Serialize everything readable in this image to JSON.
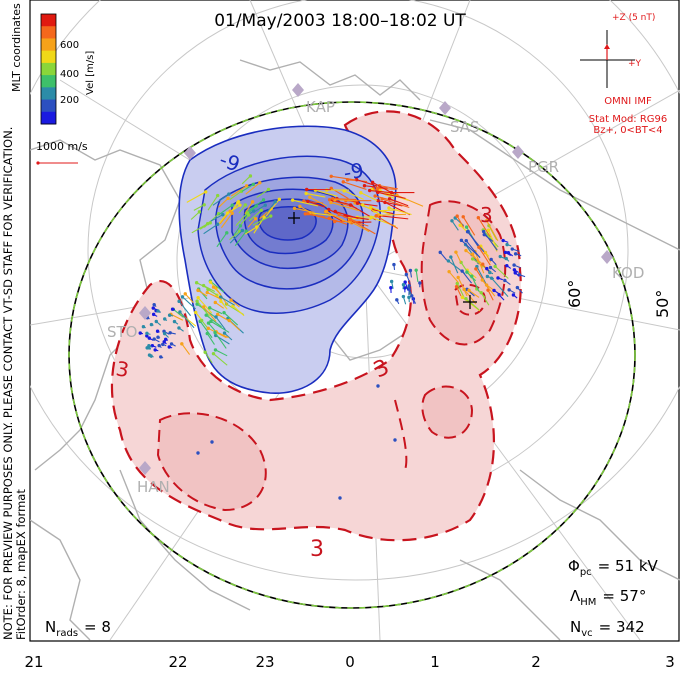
{
  "title": "01/May/2003 18:00–18:02 UT",
  "colorbar": {
    "label": "Vel [m/s]",
    "ticks": [
      "600",
      "400",
      "200"
    ],
    "colors": [
      "#e01a10",
      "#f4681c",
      "#f6a21a",
      "#f0d818",
      "#8ad63a",
      "#3ec06a",
      "#2c8ca8",
      "#2c50c0",
      "#1a1ae0"
    ]
  },
  "coordinates_label": "MLT coordinates",
  "velocity_scale_label": "1000 m/s",
  "imf": {
    "z_label": "+Z (5 nT)",
    "y_label": "+Y",
    "source": "OMNI IMF",
    "stat_mod": "Stat Mod: RG96",
    "condition": "Bz+, 0<BT<4"
  },
  "notes": {
    "line1": "NOTE: FOR PREVIEW PURPOSES ONLY. PLEASE CONTACT VT-SD STAFF FOR VERIFICATION.",
    "line2": "FitOrder: 8, mapEX format"
  },
  "stations": [
    "KAP",
    "SAS",
    "PGR",
    "KOD",
    "STO",
    "HAN"
  ],
  "latitude_labels": [
    "60°",
    "50°"
  ],
  "contour_labels": {
    "negative": "-9",
    "positive": "3"
  },
  "mlt_ticks": [
    "21",
    "22",
    "23",
    "0",
    "1",
    "2",
    "3"
  ],
  "stats": {
    "phi_pc_symbol": "Φ",
    "phi_pc_sub": "pc",
    "phi_pc_value": "= 51 kV",
    "lambda_symbol": "Λ",
    "lambda_sub": "HM",
    "lambda_value": "= 57°",
    "nvc_symbol": "N",
    "nvc_sub": "vc",
    "nvc_value": "= 342",
    "nrads_symbol": "N",
    "nrads_sub": "rads",
    "nrads_value": "= 8"
  },
  "colors": {
    "dusk_cell": "#c9cdf0",
    "dawn_cell": "#f6d6d6",
    "negative_contour": "#1a2dbf",
    "positive_contour": "#c8141e",
    "boundary_green": "#7cc83c",
    "coast": "#b0b0b0",
    "grid": "#c8c8c8",
    "imf_red": "#e0181a"
  }
}
